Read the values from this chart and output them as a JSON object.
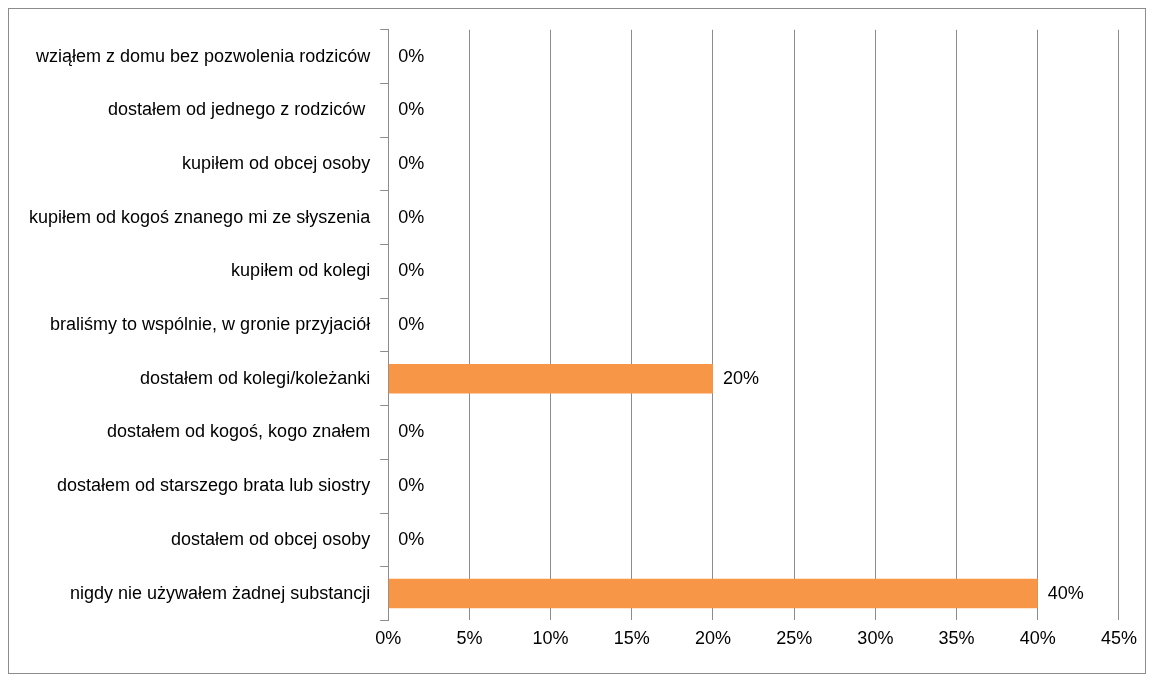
{
  "chart_data": {
    "type": "bar",
    "orientation": "horizontal",
    "categories": [
      "wziąłem z domu bez pozwolenia rodziców",
      "dostałem od jednego z rodziców ",
      "kupiłem od obcej osoby",
      "kupiłem od kogoś znanego mi ze słyszenia",
      "kupiłem od kolegi",
      "braliśmy to wspólnie, w gronie przyjaciół",
      "dostałem od kolegi/koleżanki",
      "dostałem od kogoś, kogo znałem",
      "dostałem od starszego brata lub siostry",
      "dostałem od obcej osoby",
      "nigdy nie używałem żadnej substancji"
    ],
    "values": [
      0,
      0,
      0,
      0,
      0,
      0,
      20,
      0,
      0,
      0,
      40
    ],
    "value_labels": [
      "0%",
      "0%",
      "0%",
      "0%",
      "0%",
      "0%",
      "20%",
      "0%",
      "0%",
      "0%",
      "40%"
    ],
    "color": "#f79646",
    "xlim": [
      0,
      45
    ],
    "xticks": [
      {
        "value": 0,
        "label": "0%"
      },
      {
        "value": 5,
        "label": "5%"
      },
      {
        "value": 10,
        "label": "10%"
      },
      {
        "value": 15,
        "label": "15%"
      },
      {
        "value": 20,
        "label": "20%"
      },
      {
        "value": 25,
        "label": "25%"
      },
      {
        "value": 30,
        "label": "30%"
      },
      {
        "value": 35,
        "label": "35%"
      },
      {
        "value": 40,
        "label": "40%"
      },
      {
        "value": 45,
        "label": "45%"
      }
    ],
    "grid": "x"
  }
}
